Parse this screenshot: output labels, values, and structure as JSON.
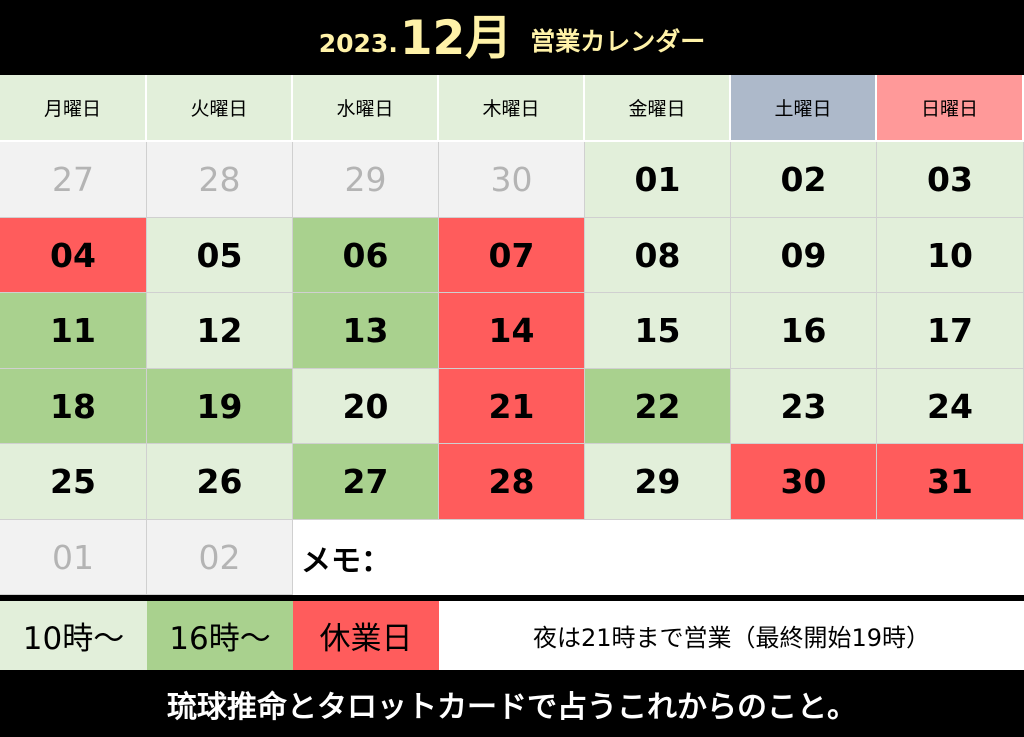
{
  "title": {
    "year": "2023.",
    "month": "12月",
    "label": "営業カレンダー"
  },
  "weekdays": [
    "月曜日",
    "火曜日",
    "水曜日",
    "木曜日",
    "金曜日",
    "土曜日",
    "日曜日"
  ],
  "weekday_colors": [
    "#e2efda",
    "#e2efda",
    "#e2efda",
    "#e2efda",
    "#e2efda",
    "#adb9ca",
    "#ff9999"
  ],
  "weeks": [
    [
      {
        "d": "27",
        "s": "other"
      },
      {
        "d": "28",
        "s": "other"
      },
      {
        "d": "29",
        "s": "other"
      },
      {
        "d": "30",
        "s": "other"
      },
      {
        "d": "01",
        "s": "10時"
      },
      {
        "d": "02",
        "s": "10時"
      },
      {
        "d": "03",
        "s": "10時"
      }
    ],
    [
      {
        "d": "04",
        "s": "休業日"
      },
      {
        "d": "05",
        "s": "10時"
      },
      {
        "d": "06",
        "s": "16時"
      },
      {
        "d": "07",
        "s": "休業日"
      },
      {
        "d": "08",
        "s": "10時"
      },
      {
        "d": "09",
        "s": "10時"
      },
      {
        "d": "10",
        "s": "10時"
      }
    ],
    [
      {
        "d": "11",
        "s": "16時"
      },
      {
        "d": "12",
        "s": "10時"
      },
      {
        "d": "13",
        "s": "16時"
      },
      {
        "d": "14",
        "s": "休業日"
      },
      {
        "d": "15",
        "s": "10時"
      },
      {
        "d": "16",
        "s": "10時"
      },
      {
        "d": "17",
        "s": "10時"
      }
    ],
    [
      {
        "d": "18",
        "s": "16時"
      },
      {
        "d": "19",
        "s": "16時"
      },
      {
        "d": "20",
        "s": "10時"
      },
      {
        "d": "21",
        "s": "休業日"
      },
      {
        "d": "22",
        "s": "16時"
      },
      {
        "d": "23",
        "s": "10時"
      },
      {
        "d": "24",
        "s": "10時"
      }
    ],
    [
      {
        "d": "25",
        "s": "10時"
      },
      {
        "d": "26",
        "s": "10時"
      },
      {
        "d": "27",
        "s": "16時"
      },
      {
        "d": "28",
        "s": "休業日"
      },
      {
        "d": "29",
        "s": "10時"
      },
      {
        "d": "30",
        "s": "休業日"
      },
      {
        "d": "31",
        "s": "休業日"
      }
    ],
    [
      {
        "d": "01",
        "s": "other"
      },
      {
        "d": "02",
        "s": "other"
      }
    ]
  ],
  "memo_label": "メモ：",
  "legend": [
    {
      "label": "10時〜",
      "color": "#e2efda"
    },
    {
      "label": "16時〜",
      "color": "#a9d18e"
    },
    {
      "label": "休業日",
      "color": "#ff5c5c"
    }
  ],
  "note": "夜は21時まで営業（最終開始19時）",
  "footer": "琉球推命とタロットカードで占うこれからのこと。"
}
